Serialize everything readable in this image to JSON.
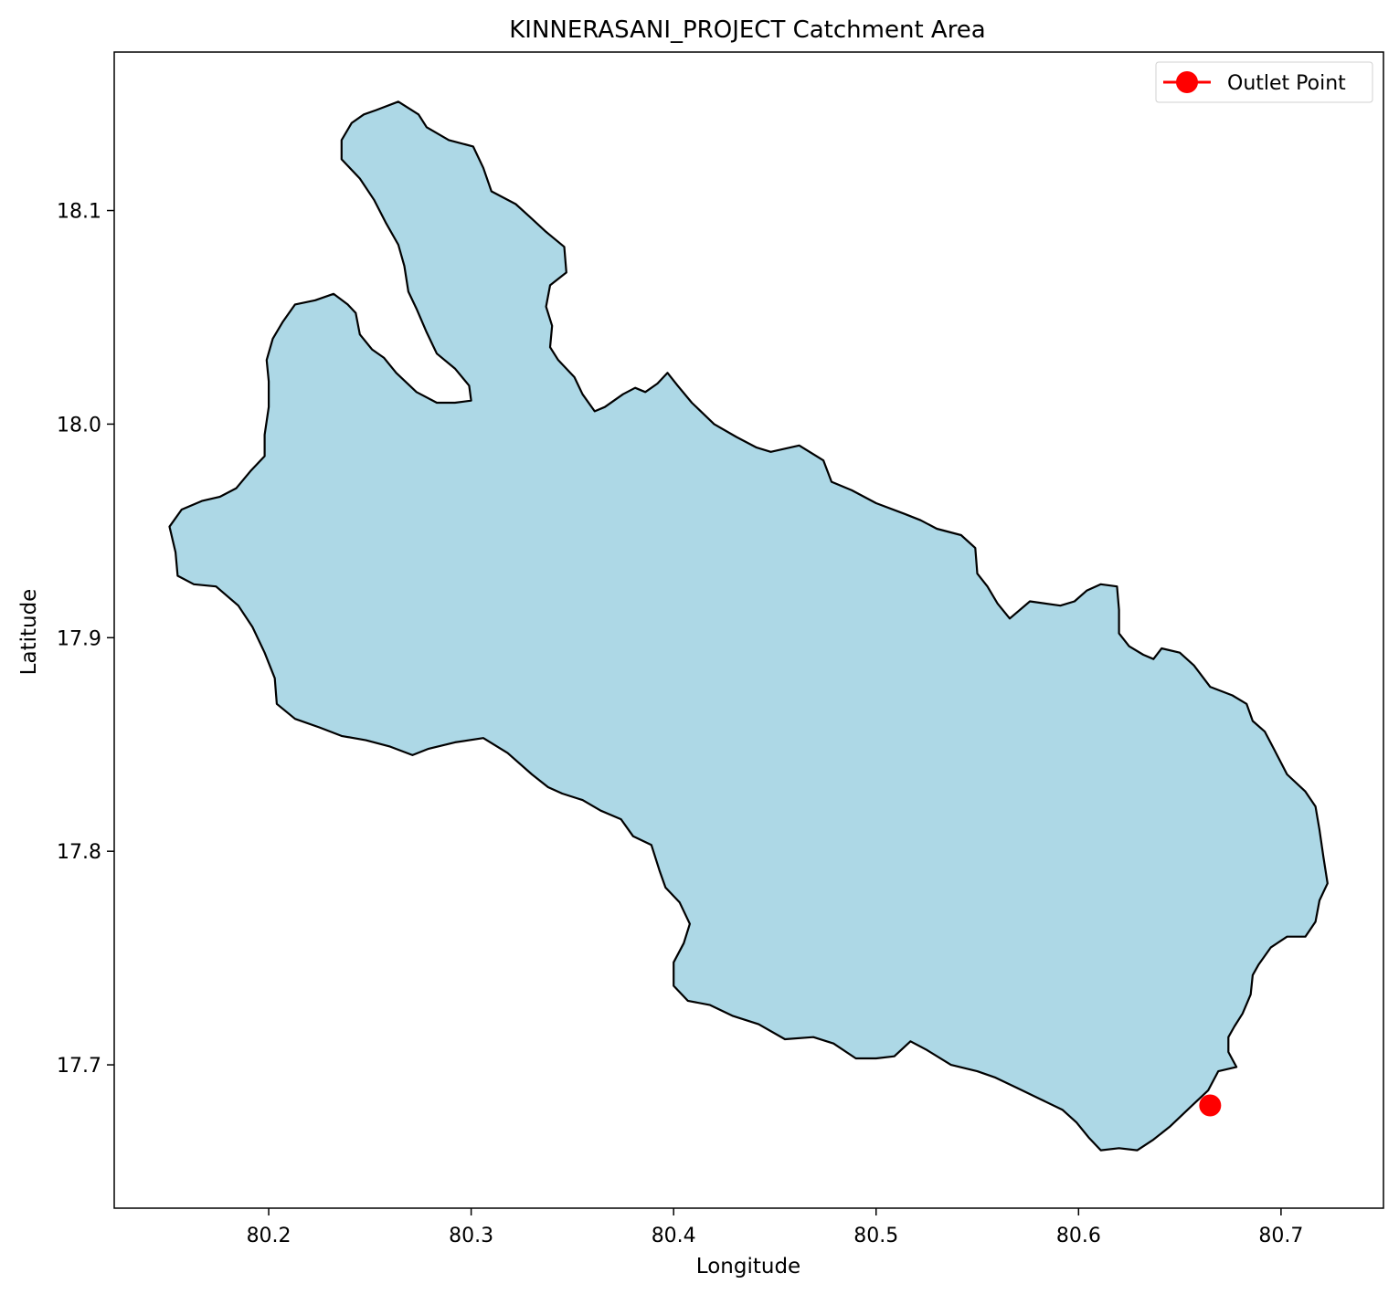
{
  "chart_data": {
    "type": "map",
    "title": "KINNERASANI_PROJECT Catchment Area",
    "xlabel": "Longitude",
    "ylabel": "Latitude",
    "xlim": [
      80.1237,
      80.7506
    ],
    "ylim": [
      17.6329,
      18.1742
    ],
    "xticks": [
      {
        "value": 80.2,
        "label": "80.2"
      },
      {
        "value": 80.3,
        "label": "80.3"
      },
      {
        "value": 80.4,
        "label": "80.4"
      },
      {
        "value": 80.5,
        "label": "80.5"
      },
      {
        "value": 80.6,
        "label": "80.6"
      },
      {
        "value": 80.7,
        "label": "80.7"
      }
    ],
    "yticks": [
      {
        "value": 17.7,
        "label": "17.7"
      },
      {
        "value": 17.8,
        "label": "17.8"
      },
      {
        "value": 17.9,
        "label": "17.9"
      },
      {
        "value": 18.0,
        "label": "18.0"
      },
      {
        "value": 18.1,
        "label": "18.1"
      }
    ],
    "catchment": {
      "fill": "#add8e6",
      "stroke": "#000000",
      "boundary": [
        [
          80.264,
          18.151
        ],
        [
          80.274,
          18.145
        ],
        [
          80.278,
          18.139
        ],
        [
          80.289,
          18.133
        ],
        [
          80.301,
          18.13
        ],
        [
          80.306,
          18.12
        ],
        [
          80.31,
          18.109
        ],
        [
          80.322,
          18.103
        ],
        [
          80.329,
          18.097
        ],
        [
          80.337,
          18.09
        ],
        [
          80.346,
          18.083
        ],
        [
          80.347,
          18.071
        ],
        [
          80.339,
          18.065
        ],
        [
          80.337,
          18.055
        ],
        [
          80.34,
          18.046
        ],
        [
          80.339,
          18.036
        ],
        [
          80.343,
          18.03
        ],
        [
          80.351,
          18.022
        ],
        [
          80.355,
          18.014
        ],
        [
          80.361,
          18.006
        ],
        [
          80.366,
          18.008
        ],
        [
          80.375,
          18.014
        ],
        [
          80.381,
          18.017
        ],
        [
          80.386,
          18.015
        ],
        [
          80.392,
          18.019
        ],
        [
          80.397,
          18.024
        ],
        [
          80.402,
          18.018
        ],
        [
          80.409,
          18.01
        ],
        [
          80.42,
          18.0
        ],
        [
          80.431,
          17.994
        ],
        [
          80.441,
          17.989
        ],
        [
          80.448,
          17.987
        ],
        [
          80.462,
          17.99
        ],
        [
          80.474,
          17.983
        ],
        [
          80.478,
          17.973
        ],
        [
          80.488,
          17.969
        ],
        [
          80.5,
          17.963
        ],
        [
          80.514,
          17.958
        ],
        [
          80.522,
          17.955
        ],
        [
          80.53,
          17.951
        ],
        [
          80.542,
          17.948
        ],
        [
          80.549,
          17.942
        ],
        [
          80.55,
          17.93
        ],
        [
          80.555,
          17.924
        ],
        [
          80.56,
          17.916
        ],
        [
          80.566,
          17.909
        ],
        [
          80.576,
          17.917
        ],
        [
          80.591,
          17.915
        ],
        [
          80.598,
          17.917
        ],
        [
          80.604,
          17.922
        ],
        [
          80.611,
          17.925
        ],
        [
          80.619,
          17.924
        ],
        [
          80.62,
          17.913
        ],
        [
          80.62,
          17.902
        ],
        [
          80.625,
          17.896
        ],
        [
          80.632,
          17.892
        ],
        [
          80.637,
          17.89
        ],
        [
          80.641,
          17.895
        ],
        [
          80.65,
          17.893
        ],
        [
          80.657,
          17.887
        ],
        [
          80.665,
          17.877
        ],
        [
          80.676,
          17.873
        ],
        [
          80.683,
          17.869
        ],
        [
          80.686,
          17.861
        ],
        [
          80.692,
          17.856
        ],
        [
          80.697,
          17.847
        ],
        [
          80.703,
          17.836
        ],
        [
          80.712,
          17.828
        ],
        [
          80.717,
          17.821
        ],
        [
          80.719,
          17.81
        ],
        [
          80.721,
          17.797
        ],
        [
          80.723,
          17.785
        ],
        [
          80.719,
          17.777
        ],
        [
          80.717,
          17.767
        ],
        [
          80.712,
          17.76
        ],
        [
          80.703,
          17.76
        ],
        [
          80.695,
          17.755
        ],
        [
          80.689,
          17.747
        ],
        [
          80.686,
          17.742
        ],
        [
          80.685,
          17.733
        ],
        [
          80.681,
          17.724
        ],
        [
          80.677,
          17.718
        ],
        [
          80.674,
          17.713
        ],
        [
          80.674,
          17.706
        ],
        [
          80.678,
          17.699
        ],
        [
          80.669,
          17.697
        ],
        [
          80.664,
          17.688
        ],
        [
          80.655,
          17.68
        ],
        [
          80.645,
          17.671
        ],
        [
          80.637,
          17.665
        ],
        [
          80.629,
          17.66
        ],
        [
          80.62,
          17.661
        ],
        [
          80.611,
          17.66
        ],
        [
          80.605,
          17.666
        ],
        [
          80.599,
          17.673
        ],
        [
          80.592,
          17.679
        ],
        [
          80.581,
          17.684
        ],
        [
          80.57,
          17.689
        ],
        [
          80.559,
          17.694
        ],
        [
          80.55,
          17.697
        ],
        [
          80.537,
          17.7
        ],
        [
          80.525,
          17.707
        ],
        [
          80.517,
          17.711
        ],
        [
          80.509,
          17.704
        ],
        [
          80.5,
          17.703
        ],
        [
          80.49,
          17.703
        ],
        [
          80.479,
          17.71
        ],
        [
          80.469,
          17.713
        ],
        [
          80.455,
          17.712
        ],
        [
          80.442,
          17.719
        ],
        [
          80.429,
          17.723
        ],
        [
          80.418,
          17.728
        ],
        [
          80.407,
          17.73
        ],
        [
          80.4,
          17.737
        ],
        [
          80.4,
          17.748
        ],
        [
          80.405,
          17.757
        ],
        [
          80.408,
          17.766
        ],
        [
          80.403,
          17.776
        ],
        [
          80.396,
          17.783
        ],
        [
          80.393,
          17.791
        ],
        [
          80.389,
          17.803
        ],
        [
          80.38,
          17.807
        ],
        [
          80.374,
          17.815
        ],
        [
          80.364,
          17.819
        ],
        [
          80.355,
          17.824
        ],
        [
          80.345,
          17.827
        ],
        [
          80.338,
          17.83
        ],
        [
          80.33,
          17.836
        ],
        [
          80.318,
          17.846
        ],
        [
          80.306,
          17.853
        ],
        [
          80.292,
          17.851
        ],
        [
          80.279,
          17.848
        ],
        [
          80.271,
          17.845
        ],
        [
          80.26,
          17.849
        ],
        [
          80.248,
          17.852
        ],
        [
          80.236,
          17.854
        ],
        [
          80.225,
          17.858
        ],
        [
          80.213,
          17.862
        ],
        [
          80.204,
          17.869
        ],
        [
          80.203,
          17.881
        ],
        [
          80.198,
          17.893
        ],
        [
          80.192,
          17.905
        ],
        [
          80.185,
          17.915
        ],
        [
          80.174,
          17.924
        ],
        [
          80.163,
          17.925
        ],
        [
          80.155,
          17.929
        ],
        [
          80.154,
          17.94
        ],
        [
          80.151,
          17.952
        ],
        [
          80.157,
          17.96
        ],
        [
          80.167,
          17.964
        ],
        [
          80.176,
          17.966
        ],
        [
          80.184,
          17.97
        ],
        [
          80.191,
          17.978
        ],
        [
          80.198,
          17.985
        ],
        [
          80.198,
          17.995
        ],
        [
          80.2,
          18.008
        ],
        [
          80.2,
          18.02
        ],
        [
          80.199,
          18.03
        ],
        [
          80.202,
          18.04
        ],
        [
          80.207,
          18.048
        ],
        [
          80.213,
          18.056
        ],
        [
          80.223,
          18.058
        ],
        [
          80.232,
          18.061
        ],
        [
          80.239,
          18.056
        ],
        [
          80.243,
          18.052
        ],
        [
          80.245,
          18.042
        ],
        [
          80.251,
          18.035
        ],
        [
          80.257,
          18.031
        ],
        [
          80.263,
          18.024
        ],
        [
          80.273,
          18.015
        ],
        [
          80.283,
          18.01
        ],
        [
          80.292,
          18.01
        ],
        [
          80.3,
          18.011
        ],
        [
          80.299,
          18.018
        ],
        [
          80.292,
          18.026
        ],
        [
          80.283,
          18.033
        ],
        [
          80.278,
          18.043
        ],
        [
          80.273,
          18.054
        ],
        [
          80.269,
          18.062
        ],
        [
          80.267,
          18.074
        ],
        [
          80.264,
          18.084
        ],
        [
          80.258,
          18.094
        ],
        [
          80.252,
          18.105
        ],
        [
          80.245,
          18.115
        ],
        [
          80.236,
          18.124
        ],
        [
          80.236,
          18.133
        ],
        [
          80.241,
          18.141
        ],
        [
          80.247,
          18.145
        ],
        [
          80.253,
          18.147
        ],
        [
          80.264,
          18.151
        ]
      ]
    },
    "outlet": {
      "lon": 80.665,
      "lat": 17.681,
      "color": "#ff0000"
    },
    "legend": {
      "label": "Outlet Point",
      "placement": "upper right"
    }
  }
}
